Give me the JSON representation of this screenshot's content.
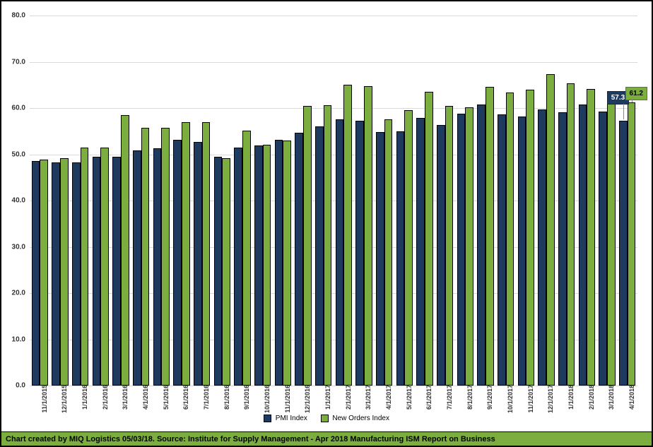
{
  "chart": {
    "type": "bar",
    "ylim": [
      0,
      80
    ],
    "ytick_step": 10,
    "y_decimals": 1,
    "background_color": "#ffffff",
    "grid_color": "#d9d9d9",
    "bar_group_width_ratio": 0.82,
    "categories": [
      "11/1/2015",
      "12/1/2015",
      "1/1/2016",
      "2/1/2016",
      "3/1/2016",
      "4/1/2016",
      "5/1/2016",
      "6/1/2016",
      "7/1/2016",
      "8/1/2016",
      "9/1/2016",
      "10/1/2016",
      "11/1/2016",
      "12/1/2016",
      "1/1/2017",
      "2/1/2017",
      "3/1/2017",
      "4/1/2017",
      "5/1/2017",
      "6/1/2017",
      "7/1/2017",
      "8/1/2017",
      "9/1/2017",
      "10/1/2017",
      "11/1/2017",
      "12/1/2017",
      "1/1/2018",
      "2/1/2018",
      "3/1/2018",
      "4/1/2018"
    ],
    "series": [
      {
        "name": "PMI Index",
        "color": "#1f3a5f",
        "values": [
          48.6,
          48.2,
          48.2,
          49.5,
          49.5,
          50.8,
          51.3,
          53.2,
          52.6,
          49.4,
          51.5,
          51.9,
          53.2,
          54.7,
          56.0,
          57.5,
          57.2,
          54.8,
          54.9,
          57.8,
          56.3,
          58.8,
          60.8,
          58.7,
          58.2,
          59.7,
          59.1,
          60.8,
          59.3,
          57.3
        ]
      },
      {
        "name": "New Orders Index",
        "color": "#7cae3f",
        "values": [
          48.9,
          49.2,
          51.5,
          51.5,
          58.4,
          55.8,
          55.7,
          57.0,
          56.9,
          49.1,
          55.1,
          52.1,
          53.0,
          60.4,
          60.6,
          65.1,
          64.7,
          57.5,
          59.5,
          63.5,
          60.4,
          60.2,
          64.6,
          63.4,
          64.0,
          67.4,
          65.4,
          64.2,
          61.9,
          61.2
        ]
      }
    ],
    "end_labels": [
      {
        "series": 0,
        "text": "57.3",
        "color": "#1f3a5f",
        "text_color": "#ffffff"
      },
      {
        "series": 1,
        "text": "61.2",
        "color": "#7cae3f",
        "text_color": "#000000"
      }
    ],
    "legend": {
      "items": [
        {
          "label": "PMI Index",
          "color": "#1f3a5f"
        },
        {
          "label": "New Orders Index",
          "color": "#7cae3f"
        }
      ]
    },
    "footer_text": "Chart created by MIQ Logistics 05/03/18. Source: Institute for Supply Management - Apr 2018 Manufacturing ISM Report on Business",
    "footer_bg": "#7cae3f",
    "axis_font_size": 10,
    "axis_font_weight": "bold"
  }
}
